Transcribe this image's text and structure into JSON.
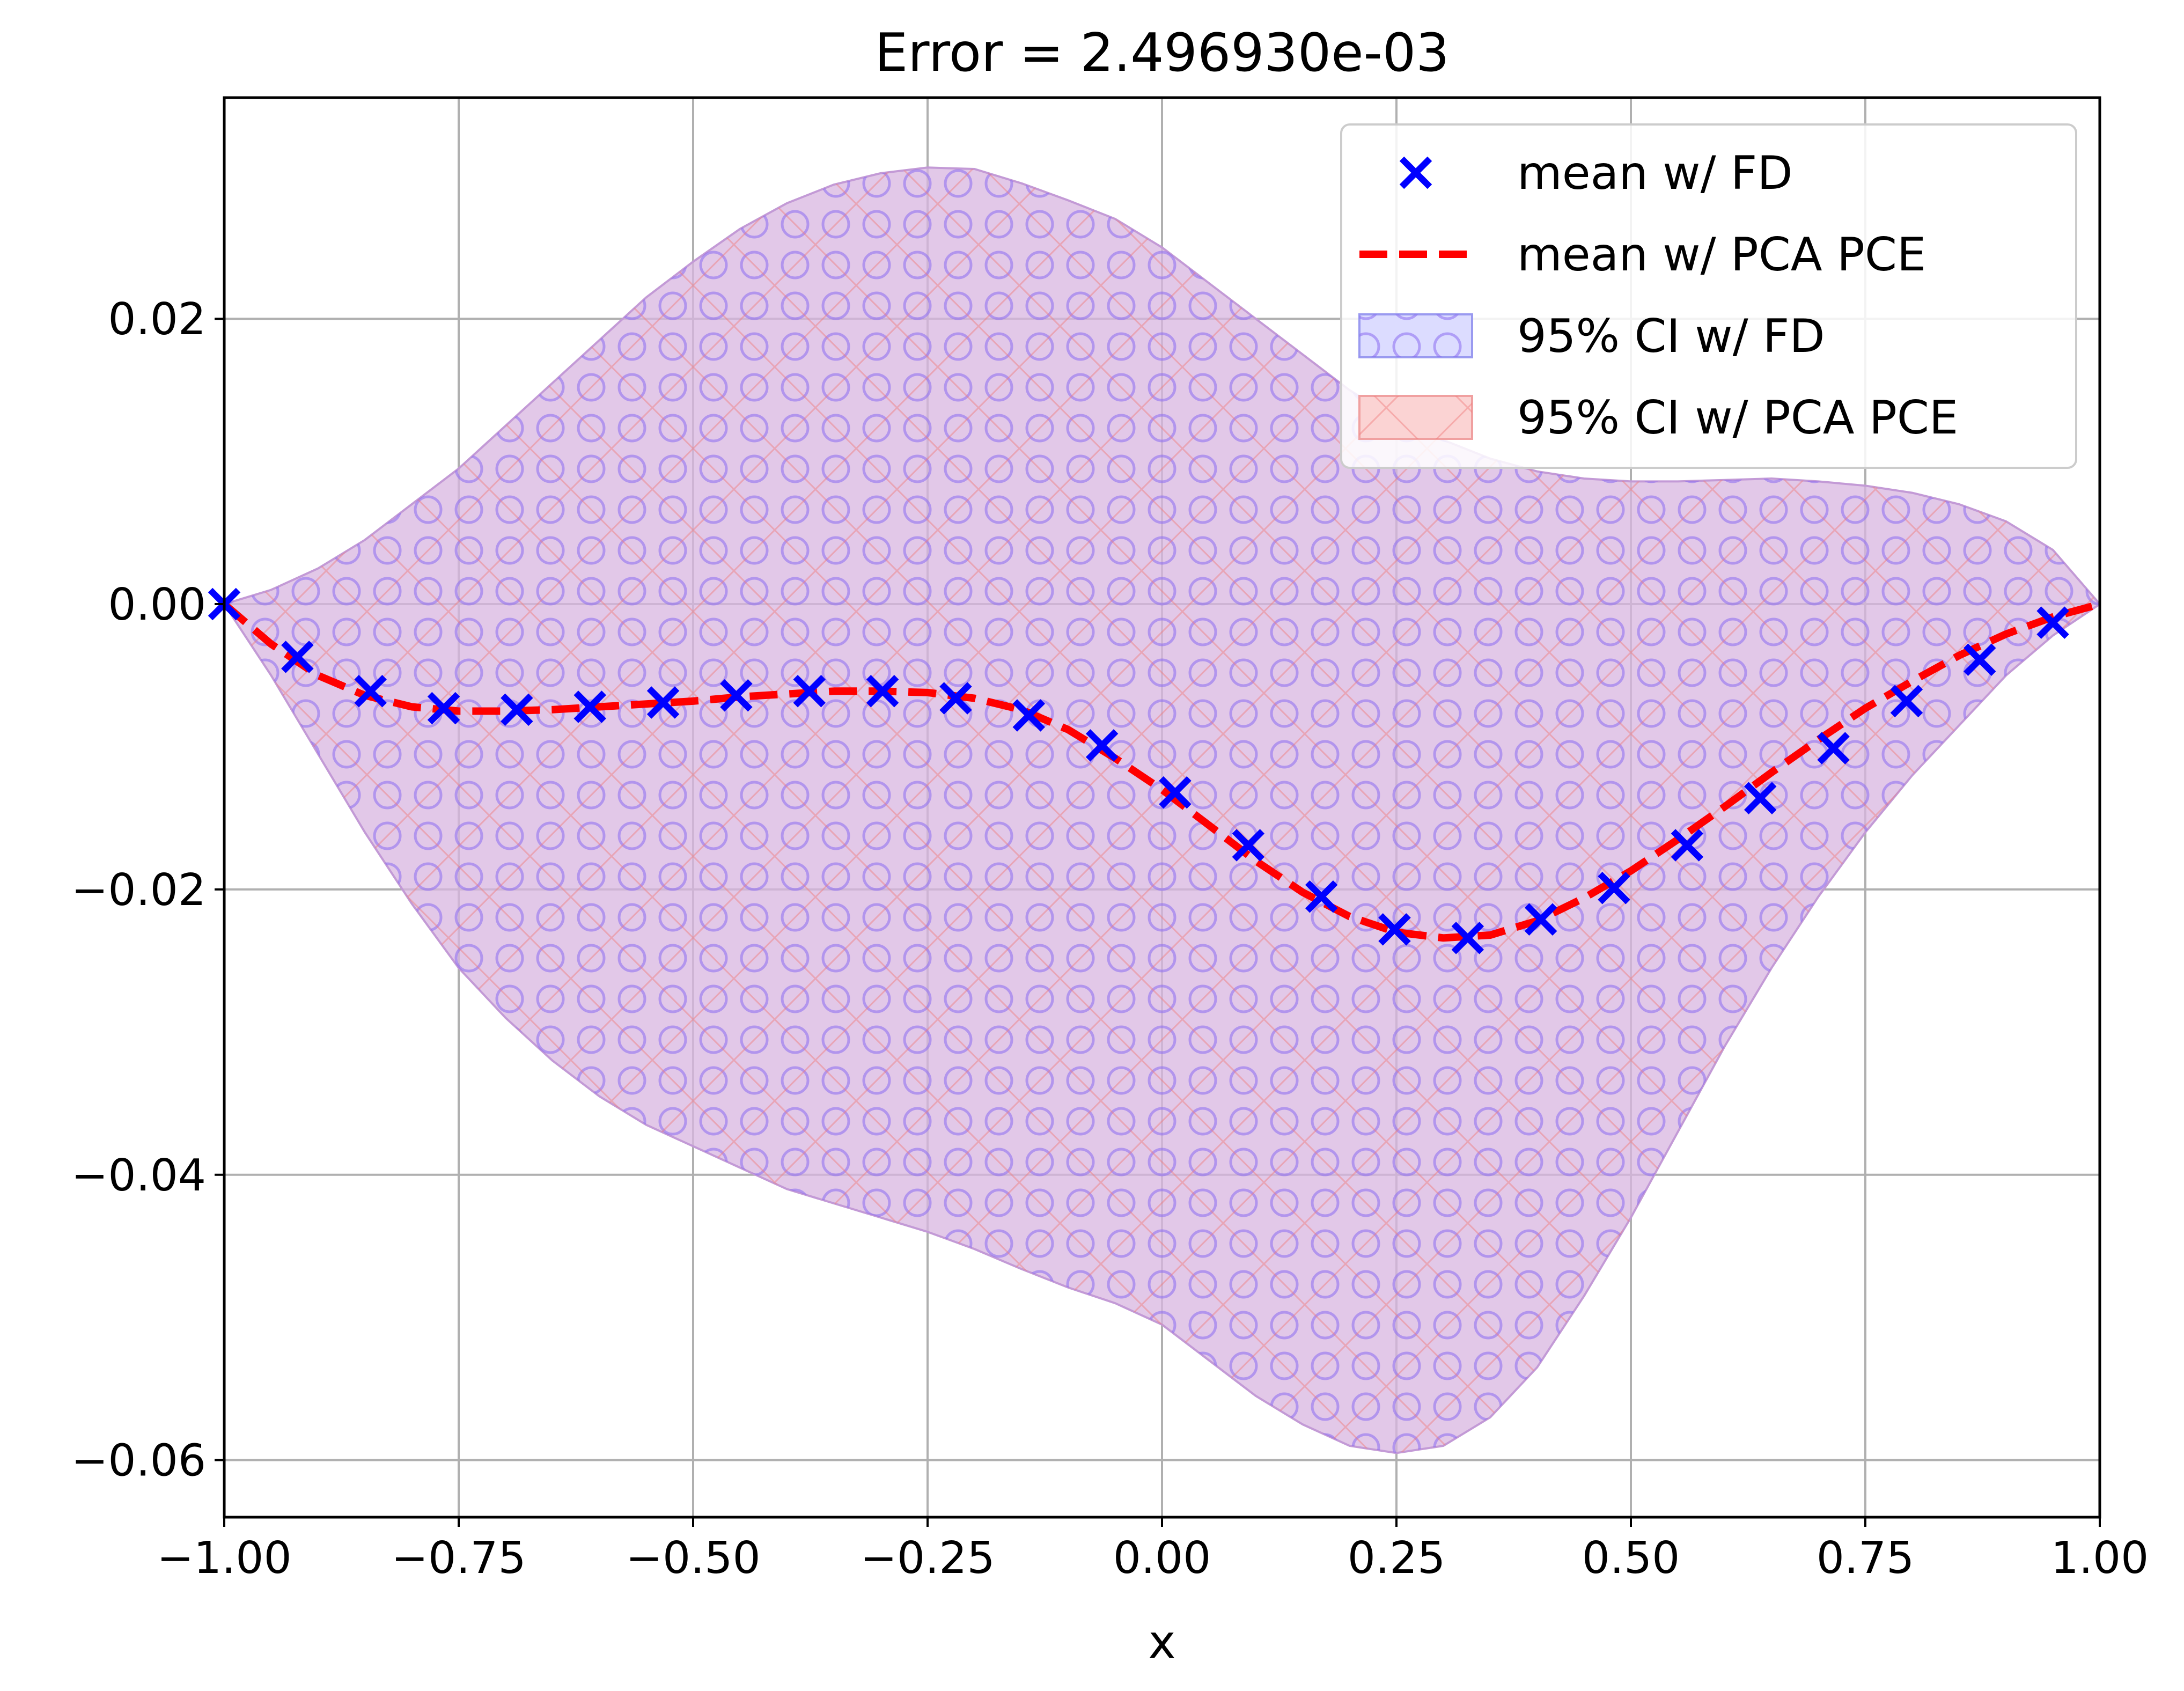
{
  "chart_data": {
    "type": "line",
    "title": "Error = 2.496930e-03",
    "xlabel": "x",
    "ylabel": "",
    "xlim": [
      -1.0,
      1.0
    ],
    "ylim": [
      -0.064,
      0.0355
    ],
    "grid": true,
    "legend_position": "top-right",
    "x_ticks": [
      -1.0,
      -0.75,
      -0.5,
      -0.25,
      0.0,
      0.25,
      0.5,
      0.75,
      1.0
    ],
    "x_tick_labels": [
      "−1.00",
      "−0.75",
      "−0.50",
      "−0.25",
      "0.00",
      "0.25",
      "0.50",
      "0.75",
      "1.00"
    ],
    "y_ticks": [
      0.02,
      0.0,
      -0.02,
      -0.04,
      -0.06
    ],
    "y_tick_labels": [
      "0.02",
      "0.00",
      "−0.02",
      "−0.04",
      "−0.06"
    ],
    "colors": {
      "fd": "#0000ff",
      "pce": "#ff0000",
      "band_fill": "#d8b6e0",
      "band_edge": "#c39ad6",
      "grid": "#b0b0b0"
    },
    "series": [
      {
        "name": "mean w/ FD",
        "style": "x-markers",
        "x": [
          -1.0,
          -0.922,
          -0.844,
          -0.766,
          -0.688,
          -0.61,
          -0.532,
          -0.454,
          -0.376,
          -0.298,
          -0.22,
          -0.142,
          -0.064,
          0.014,
          0.092,
          0.17,
          0.248,
          0.326,
          0.404,
          0.482,
          0.56,
          0.638,
          0.716,
          0.794,
          0.872,
          0.95
        ],
        "y": [
          0.0,
          -0.0037,
          -0.0061,
          -0.0073,
          -0.0074,
          -0.0072,
          -0.0069,
          -0.0064,
          -0.0061,
          -0.0061,
          -0.0066,
          -0.0078,
          -0.0099,
          -0.0132,
          -0.0169,
          -0.0205,
          -0.0228,
          -0.0234,
          -0.0221,
          -0.0199,
          -0.0169,
          -0.0136,
          -0.0101,
          -0.0068,
          -0.0039,
          -0.0013
        ]
      },
      {
        "name": "mean w/ PCA PCE",
        "style": "dashed-line",
        "x": [
          -1.0,
          -0.95,
          -0.9,
          -0.85,
          -0.8,
          -0.75,
          -0.7,
          -0.65,
          -0.6,
          -0.55,
          -0.5,
          -0.45,
          -0.4,
          -0.35,
          -0.3,
          -0.25,
          -0.2,
          -0.15,
          -0.1,
          -0.05,
          0.0,
          0.05,
          0.1,
          0.15,
          0.2,
          0.25,
          0.3,
          0.35,
          0.4,
          0.45,
          0.5,
          0.55,
          0.6,
          0.65,
          0.7,
          0.75,
          0.8,
          0.85,
          0.9,
          0.95,
          1.0
        ],
        "y": [
          0.0,
          -0.0028,
          -0.005,
          -0.0064,
          -0.0072,
          -0.0075,
          -0.0075,
          -0.0074,
          -0.0072,
          -0.007,
          -0.0068,
          -0.0065,
          -0.0063,
          -0.0061,
          -0.0061,
          -0.0062,
          -0.0066,
          -0.0074,
          -0.0088,
          -0.0108,
          -0.013,
          -0.0155,
          -0.018,
          -0.0202,
          -0.0219,
          -0.023,
          -0.0234,
          -0.0232,
          -0.0222,
          -0.0206,
          -0.0187,
          -0.0165,
          -0.0142,
          -0.0118,
          -0.0095,
          -0.0073,
          -0.0054,
          -0.0036,
          -0.0021,
          -0.0009,
          0.0
        ]
      }
    ],
    "bands": [
      {
        "name": "95% CI w/ FD",
        "hatch": "circles",
        "x": [
          -1.0,
          -0.95,
          -0.9,
          -0.85,
          -0.8,
          -0.75,
          -0.7,
          -0.65,
          -0.6,
          -0.55,
          -0.5,
          -0.45,
          -0.4,
          -0.35,
          -0.3,
          -0.25,
          -0.2,
          -0.15,
          -0.1,
          -0.05,
          0.0,
          0.05,
          0.1,
          0.15,
          0.2,
          0.25,
          0.3,
          0.35,
          0.4,
          0.45,
          0.5,
          0.55,
          0.6,
          0.65,
          0.7,
          0.75,
          0.8,
          0.85,
          0.9,
          0.95,
          1.0
        ],
        "upper": [
          0.0,
          0.001,
          0.0025,
          0.0045,
          0.007,
          0.0095,
          0.0125,
          0.0155,
          0.0185,
          0.0215,
          0.024,
          0.0263,
          0.0281,
          0.0294,
          0.0302,
          0.0306,
          0.0305,
          0.0295,
          0.0283,
          0.027,
          0.025,
          0.0225,
          0.02,
          0.0175,
          0.015,
          0.013,
          0.0115,
          0.0102,
          0.0093,
          0.0088,
          0.0086,
          0.0086,
          0.0087,
          0.0088,
          0.0086,
          0.0083,
          0.0078,
          0.007,
          0.0058,
          0.0038,
          0.0
        ],
        "lower": [
          0.0,
          -0.005,
          -0.0105,
          -0.016,
          -0.021,
          -0.0255,
          -0.029,
          -0.032,
          -0.0345,
          -0.0365,
          -0.038,
          -0.0395,
          -0.041,
          -0.042,
          -0.043,
          -0.044,
          -0.0452,
          -0.0466,
          -0.0479,
          -0.049,
          -0.0505,
          -0.053,
          -0.0555,
          -0.0575,
          -0.059,
          -0.0595,
          -0.059,
          -0.057,
          -0.0535,
          -0.0485,
          -0.043,
          -0.037,
          -0.031,
          -0.0255,
          -0.0205,
          -0.016,
          -0.012,
          -0.0085,
          -0.005,
          -0.0022,
          0.0
        ]
      },
      {
        "name": "95% CI w/ PCA PCE",
        "hatch": "crosses",
        "x": [
          -1.0,
          -0.95,
          -0.9,
          -0.85,
          -0.8,
          -0.75,
          -0.7,
          -0.65,
          -0.6,
          -0.55,
          -0.5,
          -0.45,
          -0.4,
          -0.35,
          -0.3,
          -0.25,
          -0.2,
          -0.15,
          -0.1,
          -0.05,
          0.0,
          0.05,
          0.1,
          0.15,
          0.2,
          0.25,
          0.3,
          0.35,
          0.4,
          0.45,
          0.5,
          0.55,
          0.6,
          0.65,
          0.7,
          0.75,
          0.8,
          0.85,
          0.9,
          0.95,
          1.0
        ],
        "upper": [
          0.0,
          0.001,
          0.0025,
          0.0045,
          0.007,
          0.0095,
          0.0125,
          0.0155,
          0.0185,
          0.0215,
          0.024,
          0.0263,
          0.0281,
          0.0294,
          0.0302,
          0.0306,
          0.0305,
          0.0295,
          0.0283,
          0.027,
          0.025,
          0.0225,
          0.02,
          0.0175,
          0.015,
          0.013,
          0.0115,
          0.0102,
          0.0093,
          0.0088,
          0.0086,
          0.0086,
          0.0087,
          0.0088,
          0.0086,
          0.0083,
          0.0078,
          0.007,
          0.0058,
          0.0038,
          0.0
        ],
        "lower": [
          0.0,
          -0.005,
          -0.0105,
          -0.016,
          -0.021,
          -0.0255,
          -0.029,
          -0.032,
          -0.0345,
          -0.0365,
          -0.038,
          -0.0395,
          -0.041,
          -0.042,
          -0.043,
          -0.044,
          -0.0452,
          -0.0466,
          -0.0479,
          -0.049,
          -0.0505,
          -0.053,
          -0.0555,
          -0.0575,
          -0.059,
          -0.0595,
          -0.059,
          -0.057,
          -0.0535,
          -0.0485,
          -0.043,
          -0.037,
          -0.031,
          -0.0255,
          -0.0205,
          -0.016,
          -0.012,
          -0.0085,
          -0.005,
          -0.0022,
          0.0
        ]
      }
    ]
  }
}
